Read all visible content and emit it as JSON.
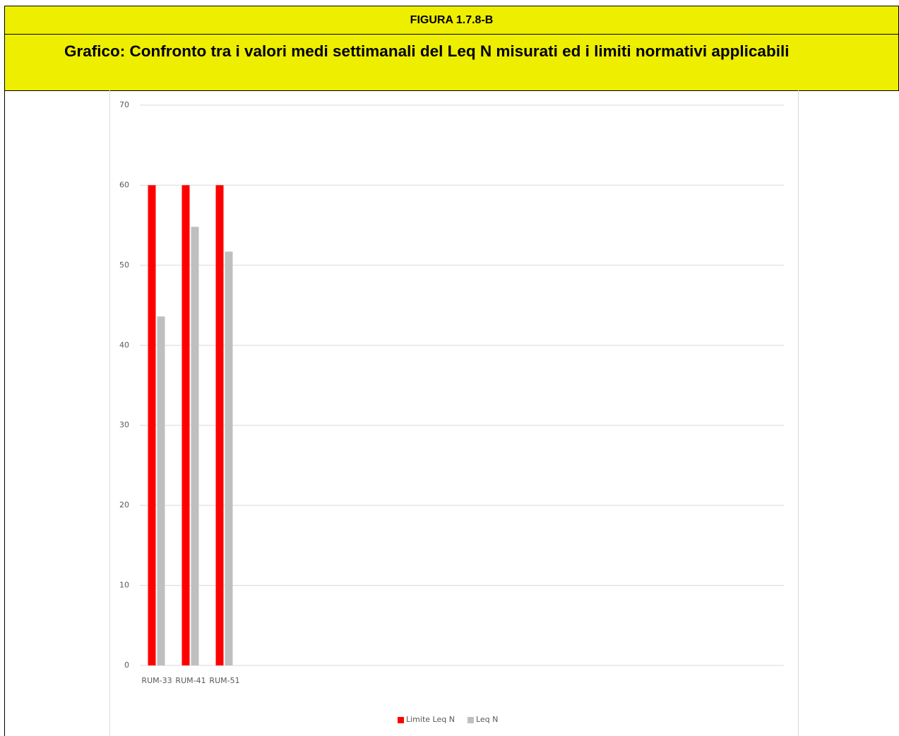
{
  "header": {
    "figure": "FIGURA 1.7.8-B",
    "title": "Grafico: Confronto tra i valori medi settimanali del Leq N misurati ed i limiti normativi applicabili"
  },
  "chart_data": {
    "type": "bar",
    "categories": [
      "RUM-33",
      "RUM-41",
      "RUM-51"
    ],
    "series": [
      {
        "name": "Limite Leq N",
        "color": "#ff0000",
        "values": [
          60,
          60,
          60
        ]
      },
      {
        "name": "Leq N",
        "color": "#bfbfbf",
        "values": [
          43.6,
          54.8,
          51.7
        ]
      }
    ],
    "ylim": [
      0,
      70
    ],
    "yticks": [
      0,
      10,
      20,
      30,
      40,
      50,
      60,
      70
    ],
    "grid": true,
    "legend": "bottom"
  }
}
